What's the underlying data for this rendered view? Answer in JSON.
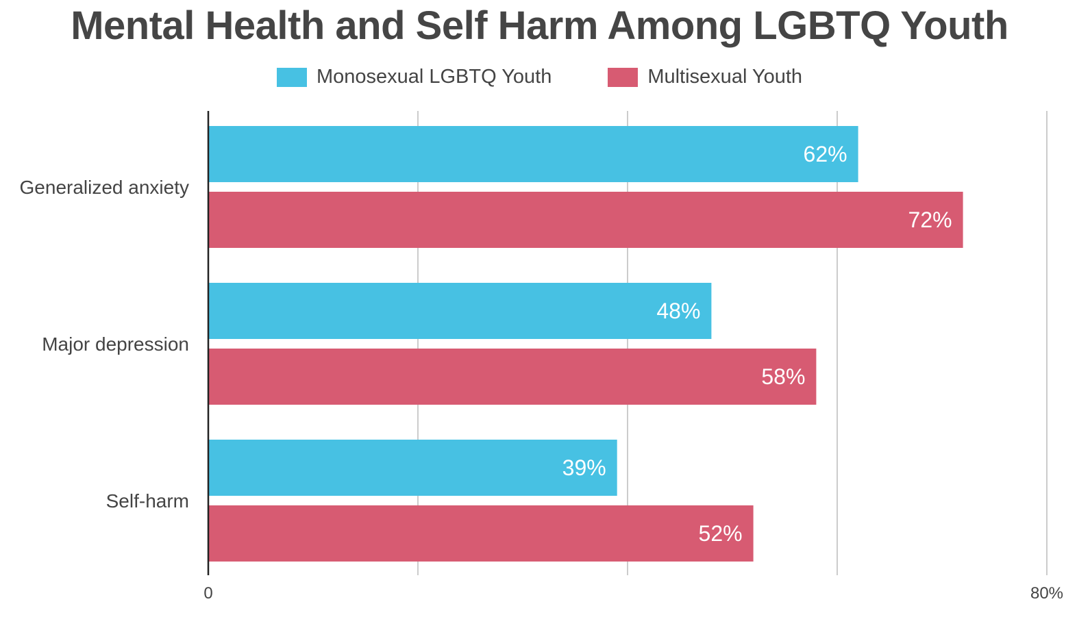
{
  "chart_data": {
    "type": "bar",
    "orientation": "horizontal",
    "title": "Mental Health and Self Harm Among LGBTQ Youth",
    "categories": [
      "Generalized anxiety",
      "Major depression",
      "Self-harm"
    ],
    "series": [
      {
        "name": "Monosexual LGBTQ Youth",
        "color": "#47C1E3",
        "values": [
          62,
          48,
          39
        ],
        "labels": [
          "62%",
          "48%",
          "39%"
        ]
      },
      {
        "name": "Multisexual Youth",
        "color": "#D75B72",
        "values": [
          72,
          58,
          52
        ],
        "labels": [
          "72%",
          "58%",
          "52%"
        ]
      }
    ],
    "xlim": [
      0,
      80
    ],
    "x_tick_labels": [
      "0",
      "80%"
    ],
    "gridlines": [
      0,
      20,
      40,
      60,
      80
    ],
    "grid": true,
    "legend_position": "top-center"
  }
}
